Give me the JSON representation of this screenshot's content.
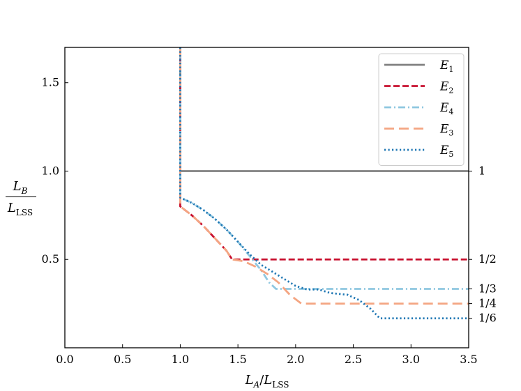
{
  "chart_data": {
    "type": "line",
    "title": "",
    "xlim": [
      0.0,
      3.5
    ],
    "ylim": [
      0.0,
      1.7
    ],
    "x_ticks": [
      0.0,
      0.5,
      1.0,
      1.5,
      2.0,
      2.5,
      3.0,
      3.5
    ],
    "x_tick_labels": [
      "0.0",
      "0.5",
      "1.0",
      "1.5",
      "2.0",
      "2.5",
      "3.0",
      "3.5"
    ],
    "y_ticks": [
      0.5,
      1.0,
      1.5
    ],
    "y_tick_labels": [
      "0.5",
      "1.0",
      "1.5"
    ],
    "xlabel": {
      "main": "L",
      "main_sub": "A",
      "sep": "/",
      "denom": "L",
      "denom_sub": "LSS"
    },
    "ylabel": {
      "num": "L",
      "num_sub": "B",
      "den": "L",
      "den_sub": "LSS"
    },
    "right_axis": {
      "ticks": [
        1.0,
        0.5,
        0.3333,
        0.25,
        0.1667
      ],
      "labels": [
        "1",
        "1/2",
        "1/3",
        "1/4",
        "1/6"
      ]
    },
    "legend_position": "upper right",
    "series": [
      {
        "name": "E",
        "sub": "1",
        "color": "#808080",
        "style": "solid",
        "points": [
          [
            1.0,
            1.7
          ],
          [
            1.0,
            1.0
          ],
          [
            3.5,
            1.0
          ]
        ]
      },
      {
        "name": "E",
        "sub": "2",
        "color": "#c8102e",
        "style": "dashed",
        "points": [
          [
            1.0,
            1.7
          ],
          [
            1.0,
            0.8
          ],
          [
            1.1,
            0.75
          ],
          [
            1.2,
            0.69
          ],
          [
            1.3,
            0.62
          ],
          [
            1.4,
            0.55
          ],
          [
            1.45,
            0.5
          ],
          [
            3.5,
            0.5
          ]
        ]
      },
      {
        "name": "E",
        "sub": "4",
        "color": "#8fc7e0",
        "style": "dashdot",
        "points": [
          [
            1.0,
            1.7
          ],
          [
            1.0,
            0.85
          ],
          [
            1.1,
            0.82
          ],
          [
            1.2,
            0.78
          ],
          [
            1.3,
            0.73
          ],
          [
            1.4,
            0.67
          ],
          [
            1.5,
            0.6
          ],
          [
            1.6,
            0.52
          ],
          [
            1.7,
            0.44
          ],
          [
            1.77,
            0.37
          ],
          [
            1.83,
            0.3333
          ],
          [
            3.5,
            0.3333
          ]
        ]
      },
      {
        "name": "E",
        "sub": "3",
        "color": "#f4a582",
        "style": "longdash",
        "points": [
          [
            1.0,
            1.7
          ],
          [
            1.0,
            0.8
          ],
          [
            1.1,
            0.75
          ],
          [
            1.2,
            0.69
          ],
          [
            1.3,
            0.62
          ],
          [
            1.4,
            0.55
          ],
          [
            1.45,
            0.5
          ],
          [
            1.55,
            0.49
          ],
          [
            1.65,
            0.46
          ],
          [
            1.75,
            0.42
          ],
          [
            1.85,
            0.37
          ],
          [
            1.95,
            0.3
          ],
          [
            2.05,
            0.25
          ],
          [
            3.5,
            0.25
          ]
        ]
      },
      {
        "name": "E",
        "sub": "5",
        "color": "#1f77b4",
        "style": "dotted",
        "points": [
          [
            1.0,
            1.7
          ],
          [
            1.0,
            0.85
          ],
          [
            1.1,
            0.82
          ],
          [
            1.2,
            0.78
          ],
          [
            1.3,
            0.73
          ],
          [
            1.4,
            0.67
          ],
          [
            1.5,
            0.6
          ],
          [
            1.6,
            0.53
          ],
          [
            1.7,
            0.47
          ],
          [
            1.8,
            0.43
          ],
          [
            1.9,
            0.39
          ],
          [
            2.0,
            0.35
          ],
          [
            2.1,
            0.33
          ],
          [
            2.2,
            0.33
          ],
          [
            2.3,
            0.31
          ],
          [
            2.45,
            0.3
          ],
          [
            2.55,
            0.27
          ],
          [
            2.65,
            0.22
          ],
          [
            2.73,
            0.1667
          ],
          [
            3.5,
            0.1667
          ]
        ]
      }
    ]
  }
}
